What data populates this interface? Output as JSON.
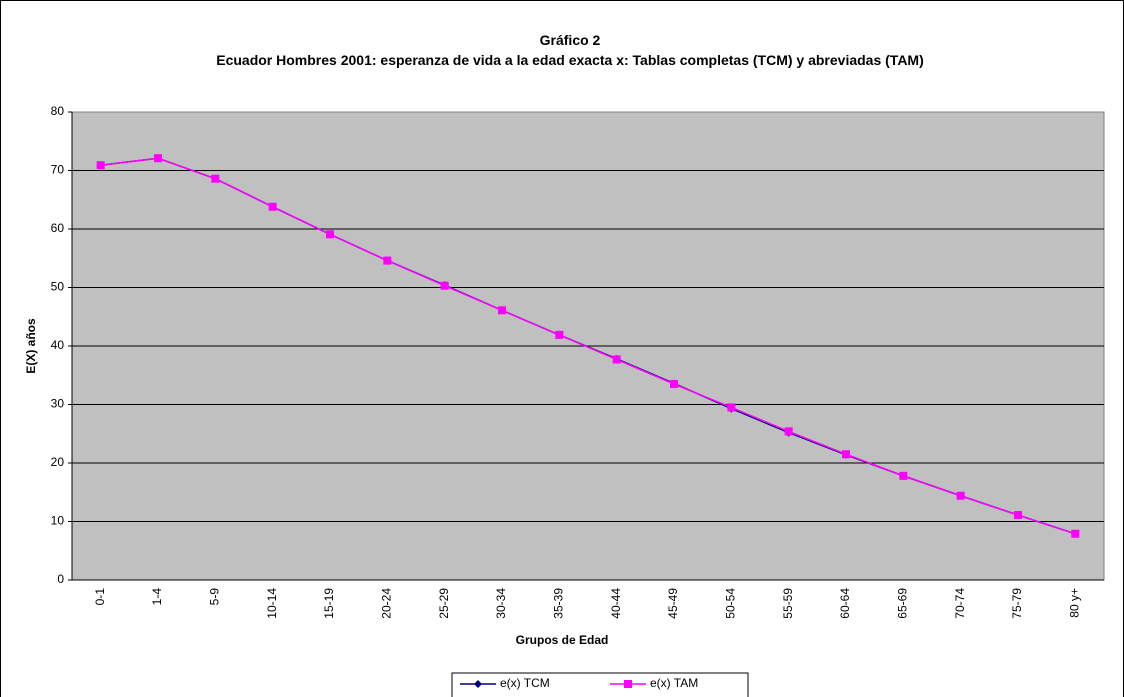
{
  "chart_data": {
    "type": "line",
    "title": "Gráfico 2",
    "subtitle": "Ecuador Hombres 2001: esperanza de vida a la edad exacta x: Tablas completas (TCM) y abreviadas (TAM)",
    "xlabel": "Grupos de Edad",
    "ylabel": "E(X) años",
    "categories": [
      "0-1",
      "1-4",
      "5-9",
      "10-14",
      "15-19",
      "20-24",
      "25-29",
      "30-34",
      "35-39",
      "40-44",
      "45-49",
      "50-54",
      "55-59",
      "60-64",
      "65-69",
      "70-74",
      "75-79",
      "80 y+"
    ],
    "series": [
      {
        "name": "e(x) TCM",
        "color": "#000080",
        "marker": "diamond",
        "values": [
          70.9,
          72.1,
          68.6,
          63.8,
          59.1,
          54.6,
          50.4,
          46.1,
          41.9,
          37.8,
          33.6,
          29.3,
          25.2,
          21.4,
          17.8,
          14.4,
          11.1,
          7.9
        ]
      },
      {
        "name": "e(x) TAM",
        "color": "#ff00ff",
        "marker": "square",
        "values": [
          70.9,
          72.1,
          68.6,
          63.8,
          59.1,
          54.6,
          50.3,
          46.1,
          41.9,
          37.7,
          33.5,
          29.5,
          25.4,
          21.5,
          17.8,
          14.4,
          11.1,
          7.9
        ]
      }
    ],
    "ylim": [
      0,
      80
    ],
    "yticks": [
      0,
      10,
      20,
      30,
      40,
      50,
      60,
      70,
      80
    ],
    "grid": true,
    "legend": "bottom"
  }
}
